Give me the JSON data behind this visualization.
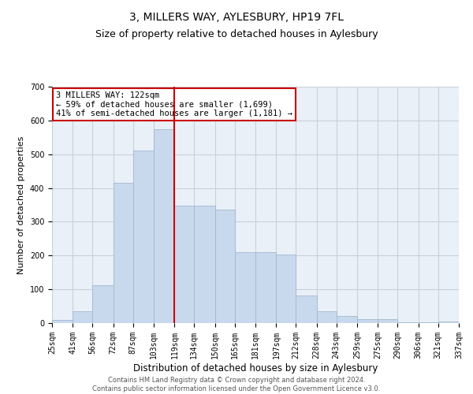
{
  "title": "3, MILLERS WAY, AYLESBURY, HP19 7FL",
  "subtitle": "Size of property relative to detached houses in Aylesbury",
  "xlabel": "Distribution of detached houses by size in Aylesbury",
  "ylabel": "Number of detached properties",
  "bar_color": "#c9d9ed",
  "bar_edge_color": "#a0b8d0",
  "grid_color": "#c8d0d8",
  "background_color": "#eaf0f8",
  "vline_x": 119,
  "vline_color": "#cc0000",
  "annotation_text": "3 MILLERS WAY: 122sqm\n← 59% of detached houses are smaller (1,699)\n41% of semi-detached houses are larger (1,181) →",
  "annotation_box_color": "#ffffff",
  "annotation_edge_color": "#cc0000",
  "bin_edges": [
    25,
    41,
    56,
    72,
    87,
    103,
    119,
    134,
    150,
    165,
    181,
    197,
    212,
    228,
    243,
    259,
    275,
    290,
    306,
    321,
    337
  ],
  "bin_labels": [
    "25sqm",
    "41sqm",
    "56sqm",
    "72sqm",
    "87sqm",
    "103sqm",
    "119sqm",
    "134sqm",
    "150sqm",
    "165sqm",
    "181sqm",
    "197sqm",
    "212sqm",
    "228sqm",
    "243sqm",
    "259sqm",
    "275sqm",
    "290sqm",
    "306sqm",
    "321sqm",
    "337sqm"
  ],
  "bar_heights": [
    10,
    35,
    113,
    415,
    510,
    575,
    348,
    347,
    335,
    210,
    210,
    203,
    82,
    35,
    20,
    12,
    12,
    2,
    2,
    5
  ],
  "ylim": [
    0,
    700
  ],
  "yticks": [
    0,
    100,
    200,
    300,
    400,
    500,
    600,
    700
  ],
  "footer_text": "Contains HM Land Registry data © Crown copyright and database right 2024.\nContains public sector information licensed under the Open Government Licence v3.0.",
  "title_fontsize": 10,
  "subtitle_fontsize": 9,
  "xlabel_fontsize": 8.5,
  "ylabel_fontsize": 8,
  "tick_fontsize": 7,
  "annotation_fontsize": 7.5,
  "footer_fontsize": 6
}
